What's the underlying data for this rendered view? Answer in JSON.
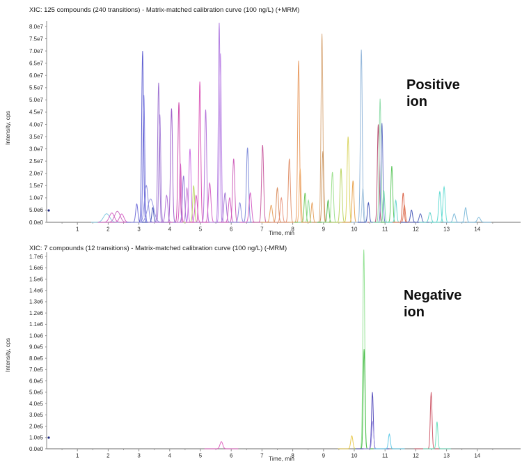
{
  "chart_data": [
    {
      "type": "line",
      "panel": "positive-ion",
      "title": "XIC: 125 compounds (240 transitions) - Matrix-matched calibration curve (100 ng/L) (+MRM)",
      "annotation_lines": [
        "Positive",
        "ion"
      ],
      "xlabel": "Time, min",
      "ylabel": "Intensity, cps",
      "xlim": [
        0,
        15.4
      ],
      "ylim": [
        0,
        80000000.0
      ],
      "grid": false,
      "legend": "none",
      "xticks": [
        "1",
        "2",
        "3",
        "4",
        "5",
        "6",
        "7",
        "8",
        "9",
        "10",
        "11",
        "12",
        "13",
        "14"
      ],
      "yticks": [
        "0.0e0",
        "5.0e6",
        "1.0e7",
        "1.5e7",
        "2.0e7",
        "2.5e7",
        "3.0e7",
        "3.5e7",
        "4.0e7",
        "4.5e7",
        "5.0e7",
        "5.5e7",
        "6.0e7",
        "6.5e7",
        "7.0e7",
        "7.5e7",
        "8.0e7"
      ],
      "peaks": [
        {
          "t_min": 1.95,
          "i_cps": 3500000.0,
          "color": "#7fc7e0",
          "sigma": 0.1,
          "ext": 0.5
        },
        {
          "t_min": 2.12,
          "i_cps": 3800000.0,
          "color": "#d45cc3",
          "sigma": 0.08,
          "ext": 0.45
        },
        {
          "t_min": 2.3,
          "i_cps": 4500000.0,
          "color": "#c86abf",
          "sigma": 0.09,
          "ext": 0.45
        },
        {
          "t_min": 2.44,
          "i_cps": 3400000.0,
          "color": "#d45cc3",
          "sigma": 0.07,
          "ext": 0.4
        },
        {
          "t_min": 2.93,
          "i_cps": 7500000.0,
          "color": "#6e6bd8",
          "sigma": 0.035,
          "ext": 0.35
        },
        {
          "t_min": 3.12,
          "i_cps": 70000000.0,
          "color": "#5a5ad0",
          "sigma": 0.03,
          "ext": 0.35
        },
        {
          "t_min": 3.16,
          "i_cps": 52000000.0,
          "color": "#7a7ae0",
          "sigma": 0.03,
          "ext": 0.35
        },
        {
          "t_min": 3.24,
          "i_cps": 15000000.0,
          "color": "#8888dd",
          "sigma": 0.06,
          "ext": 0.5
        },
        {
          "t_min": 3.38,
          "i_cps": 9500000.0,
          "color": "#9090e0",
          "sigma": 0.1,
          "ext": 0.5
        },
        {
          "t_min": 3.45,
          "i_cps": 6000000.0,
          "color": "#3f51b5",
          "sigma": 0.03,
          "ext": 0.35
        },
        {
          "t_min": 3.64,
          "i_cps": 57000000.0,
          "color": "#9b6fd0",
          "sigma": 0.03,
          "ext": 0.35
        },
        {
          "t_min": 3.68,
          "i_cps": 44000000.0,
          "color": "#a87fd8",
          "sigma": 0.03,
          "ext": 0.35
        },
        {
          "t_min": 3.9,
          "i_cps": 11000000.0,
          "color": "#b06fd8",
          "sigma": 0.04,
          "ext": 0.35
        },
        {
          "t_min": 4.06,
          "i_cps": 46500000.0,
          "color": "#9b59c8",
          "sigma": 0.032,
          "ext": 0.35
        },
        {
          "t_min": 4.3,
          "i_cps": 49000000.0,
          "color": "#cc44aa",
          "sigma": 0.032,
          "ext": 0.35
        },
        {
          "t_min": 4.35,
          "i_cps": 24000000.0,
          "color": "#d45cc3",
          "sigma": 0.03,
          "ext": 0.35
        },
        {
          "t_min": 4.45,
          "i_cps": 19000000.0,
          "color": "#8e6bd8",
          "sigma": 0.035,
          "ext": 0.35
        },
        {
          "t_min": 4.56,
          "i_cps": 14000000.0,
          "color": "#c77fd4",
          "sigma": 0.035,
          "ext": 0.35
        },
        {
          "t_min": 4.66,
          "i_cps": 30000000.0,
          "color": "#cb6ce6",
          "sigma": 0.035,
          "ext": 0.35
        },
        {
          "t_min": 4.78,
          "i_cps": 15000000.0,
          "color": "#b8d45e",
          "sigma": 0.03,
          "ext": 0.35
        },
        {
          "t_min": 4.86,
          "i_cps": 11000000.0,
          "color": "#d45cc3",
          "sigma": 0.04,
          "ext": 0.35
        },
        {
          "t_min": 4.98,
          "i_cps": 57500000.0,
          "color": "#d950b5",
          "sigma": 0.03,
          "ext": 0.35
        },
        {
          "t_min": 5.17,
          "i_cps": 46000000.0,
          "color": "#b06fd8",
          "sigma": 0.032,
          "ext": 0.35
        },
        {
          "t_min": 5.3,
          "i_cps": 16000000.0,
          "color": "#d45cc3",
          "sigma": 0.04,
          "ext": 0.35
        },
        {
          "t_min": 5.61,
          "i_cps": 81500000.0,
          "color": "#b07ae0",
          "sigma": 0.028,
          "ext": 0.35
        },
        {
          "t_min": 5.65,
          "i_cps": 69000000.0,
          "color": "#c08ae8",
          "sigma": 0.03,
          "ext": 0.35
        },
        {
          "t_min": 5.8,
          "i_cps": 12000000.0,
          "color": "#9b6fd0",
          "sigma": 0.04,
          "ext": 0.35
        },
        {
          "t_min": 5.95,
          "i_cps": 10000000.0,
          "color": "#d45cc3",
          "sigma": 0.04,
          "ext": 0.35
        },
        {
          "t_min": 6.08,
          "i_cps": 26000000.0,
          "color": "#cc5ab8",
          "sigma": 0.035,
          "ext": 0.35
        },
        {
          "t_min": 6.28,
          "i_cps": 8000000.0,
          "color": "#8888dd",
          "sigma": 0.04,
          "ext": 0.35
        },
        {
          "t_min": 6.53,
          "i_cps": 30500000.0,
          "color": "#7a88d8",
          "sigma": 0.035,
          "ext": 0.35
        },
        {
          "t_min": 6.62,
          "i_cps": 12000000.0,
          "color": "#d45cc3",
          "sigma": 0.04,
          "ext": 0.35
        },
        {
          "t_min": 7.02,
          "i_cps": 31600000.0,
          "color": "#c85a9e",
          "sigma": 0.033,
          "ext": 0.35
        },
        {
          "t_min": 7.3,
          "i_cps": 7000000.0,
          "color": "#e8a05c",
          "sigma": 0.04,
          "ext": 0.35
        },
        {
          "t_min": 7.5,
          "i_cps": 14000000.0,
          "color": "#d88a5a",
          "sigma": 0.035,
          "ext": 0.35
        },
        {
          "t_min": 7.63,
          "i_cps": 10000000.0,
          "color": "#e8927a",
          "sigma": 0.035,
          "ext": 0.35
        },
        {
          "t_min": 7.89,
          "i_cps": 26000000.0,
          "color": "#e0906a",
          "sigma": 0.033,
          "ext": 0.35
        },
        {
          "t_min": 8.19,
          "i_cps": 66000000.0,
          "color": "#e89a5f",
          "sigma": 0.03,
          "ext": 0.35
        },
        {
          "t_min": 8.24,
          "i_cps": 22000000.0,
          "color": "#f0b070",
          "sigma": 0.03,
          "ext": 0.35
        },
        {
          "t_min": 8.4,
          "i_cps": 12000000.0,
          "color": "#6cc653",
          "sigma": 0.03,
          "ext": 0.35
        },
        {
          "t_min": 8.51,
          "i_cps": 9000000.0,
          "color": "#8fdc9a",
          "sigma": 0.03,
          "ext": 0.35
        },
        {
          "t_min": 8.63,
          "i_cps": 8000000.0,
          "color": "#e8a05c",
          "sigma": 0.03,
          "ext": 0.35
        },
        {
          "t_min": 8.95,
          "i_cps": 77000000.0,
          "color": "#d8a878",
          "sigma": 0.03,
          "ext": 0.35
        },
        {
          "t_min": 8.98,
          "i_cps": 29000000.0,
          "color": "#c89058",
          "sigma": 0.03,
          "ext": 0.35
        },
        {
          "t_min": 9.15,
          "i_cps": 9000000.0,
          "color": "#4cb84c",
          "sigma": 0.03,
          "ext": 0.35
        },
        {
          "t_min": 9.29,
          "i_cps": 20500000.0,
          "color": "#9adf8a",
          "sigma": 0.033,
          "ext": 0.35
        },
        {
          "t_min": 9.57,
          "i_cps": 22000000.0,
          "color": "#b8d45e",
          "sigma": 0.033,
          "ext": 0.35
        },
        {
          "t_min": 9.8,
          "i_cps": 35000000.0,
          "color": "#d9d45e",
          "sigma": 0.033,
          "ext": 0.35
        },
        {
          "t_min": 9.96,
          "i_cps": 17000000.0,
          "color": "#e8a04a",
          "sigma": 0.03,
          "ext": 0.35
        },
        {
          "t_min": 10.23,
          "i_cps": 70500000.0,
          "color": "#8fb4d9",
          "sigma": 0.03,
          "ext": 0.35
        },
        {
          "t_min": 10.28,
          "i_cps": 14000000.0,
          "color": "#aac8e0",
          "sigma": 0.03,
          "ext": 0.35
        },
        {
          "t_min": 10.46,
          "i_cps": 8000000.0,
          "color": "#3f51b5",
          "sigma": 0.03,
          "ext": 0.35
        },
        {
          "t_min": 10.78,
          "i_cps": 40000000.0,
          "color": "#b8476f",
          "sigma": 0.03,
          "ext": 0.35
        },
        {
          "t_min": 10.84,
          "i_cps": 50500000.0,
          "color": "#8fdcaa",
          "sigma": 0.03,
          "ext": 0.35
        },
        {
          "t_min": 10.9,
          "i_cps": 40500000.0,
          "color": "#6672c8",
          "sigma": 0.03,
          "ext": 0.35
        },
        {
          "t_min": 10.96,
          "i_cps": 13000000.0,
          "color": "#71d9a8",
          "sigma": 0.03,
          "ext": 0.35
        },
        {
          "t_min": 11.22,
          "i_cps": 23000000.0,
          "color": "#5cc65c",
          "sigma": 0.03,
          "ext": 0.35
        },
        {
          "t_min": 11.35,
          "i_cps": 9000000.0,
          "color": "#5fd3cc",
          "sigma": 0.03,
          "ext": 0.35
        },
        {
          "t_min": 11.59,
          "i_cps": 12000000.0,
          "color": "#d95f43",
          "sigma": 0.03,
          "ext": 0.35
        },
        {
          "t_min": 11.63,
          "i_cps": 7000000.0,
          "color": "#e07858",
          "sigma": 0.03,
          "ext": 0.35
        },
        {
          "t_min": 11.86,
          "i_cps": 5000000.0,
          "color": "#3f51b5",
          "sigma": 0.035,
          "ext": 0.35
        },
        {
          "t_min": 12.15,
          "i_cps": 3500000.0,
          "color": "#5566bb",
          "sigma": 0.04,
          "ext": 0.35
        },
        {
          "t_min": 12.46,
          "i_cps": 4000000.0,
          "color": "#5fd3cc",
          "sigma": 0.04,
          "ext": 0.35
        },
        {
          "t_min": 12.78,
          "i_cps": 12500000.0,
          "color": "#55d8d0",
          "sigma": 0.035,
          "ext": 0.35
        },
        {
          "t_min": 12.92,
          "i_cps": 14500000.0,
          "color": "#66dcd4",
          "sigma": 0.035,
          "ext": 0.35
        },
        {
          "t_min": 13.25,
          "i_cps": 3500000.0,
          "color": "#7ab8d9",
          "sigma": 0.04,
          "ext": 0.35
        },
        {
          "t_min": 13.62,
          "i_cps": 6000000.0,
          "color": "#7ab8d9",
          "sigma": 0.035,
          "ext": 0.35
        },
        {
          "t_min": 14.05,
          "i_cps": 2000000.0,
          "color": "#7ab8d9",
          "sigma": 0.05,
          "ext": 0.4
        }
      ]
    },
    {
      "type": "line",
      "panel": "negative-ion",
      "title": "XIC: 7 compounds (12 transitions) - Matrix-matched calibration curve (100 ng/L) (-MRM)",
      "annotation_lines": [
        "Negative",
        "ion"
      ],
      "xlabel": "Time, min",
      "ylabel": "Intensity, cps",
      "xlim": [
        0,
        15.4
      ],
      "ylim": [
        0,
        1700000.0
      ],
      "grid": false,
      "legend": "none",
      "xticks": [
        "1",
        "2",
        "3",
        "4",
        "5",
        "6",
        "7",
        "8",
        "9",
        "10",
        "11",
        "12",
        "13",
        "14"
      ],
      "yticks": [
        "0.0e0",
        "1.0e5",
        "2.0e5",
        "3.0e5",
        "4.0e5",
        "5.0e5",
        "6.0e5",
        "7.0e5",
        "8.0e5",
        "9.0e5",
        "1.0e6",
        "1.1e6",
        "1.2e6",
        "1.3e6",
        "1.4e6",
        "1.5e6",
        "1.6e6",
        "1.7e6"
      ],
      "peaks": [
        {
          "t_min": 5.68,
          "i_cps": 63000.0,
          "color": "#e060c0",
          "sigma": 0.045,
          "ext": 0.55
        },
        {
          "t_min": 9.92,
          "i_cps": 115000.0,
          "color": "#e8c84a",
          "sigma": 0.035,
          "ext": 0.45
        },
        {
          "t_min": 10.31,
          "i_cps": 1760000.0,
          "color": "#8fe08f",
          "sigma": 0.03,
          "ext": 0.3
        },
        {
          "t_min": 10.32,
          "i_cps": 880000.0,
          "color": "#44bb44",
          "sigma": 0.028,
          "ext": 0.3
        },
        {
          "t_min": 10.59,
          "i_cps": 500000.0,
          "color": "#4f46b8",
          "sigma": 0.028,
          "ext": 0.55
        },
        {
          "t_min": 10.6,
          "i_cps": 240000.0,
          "color": "#9b8fe0",
          "sigma": 0.03,
          "ext": 0.3
        },
        {
          "t_min": 11.14,
          "i_cps": 130000.0,
          "color": "#5bc8e8",
          "sigma": 0.032,
          "ext": 0.5
        },
        {
          "t_min": 12.5,
          "i_cps": 500000.0,
          "color": "#cc5566",
          "sigma": 0.028,
          "ext": 0.55
        },
        {
          "t_min": 12.69,
          "i_cps": 240000.0,
          "color": "#66debb",
          "sigma": 0.028,
          "ext": 0.45
        }
      ]
    }
  ]
}
